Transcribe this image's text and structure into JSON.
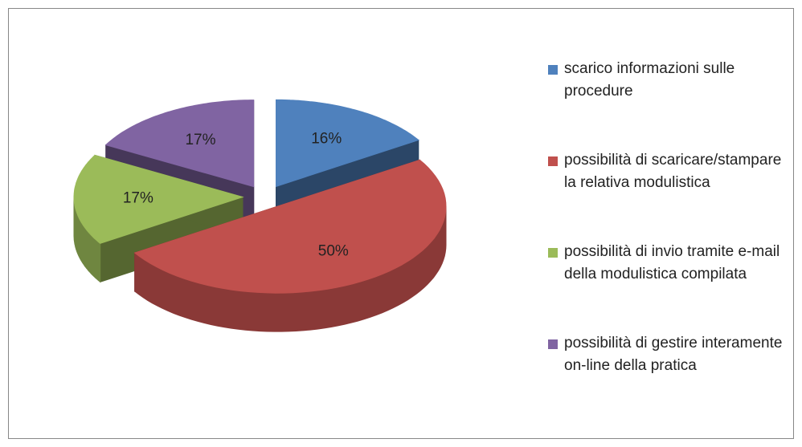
{
  "chart_data": {
    "type": "pie3d",
    "categories": [
      "scarico informazioni sulle procedure",
      "possibilità di scaricare/stampare la relativa modulistica",
      "possibilità di invio tramite e-mail della modulistica compilata",
      "possibilità di gestire interamente on-line della pratica"
    ],
    "values": [
      16,
      50,
      17,
      17
    ],
    "value_labels": [
      "16%",
      "50%",
      "17%",
      "17%"
    ],
    "colors": [
      "#4f81bd",
      "#c0504d",
      "#9bbb59",
      "#8064a2"
    ],
    "legend": "right"
  }
}
